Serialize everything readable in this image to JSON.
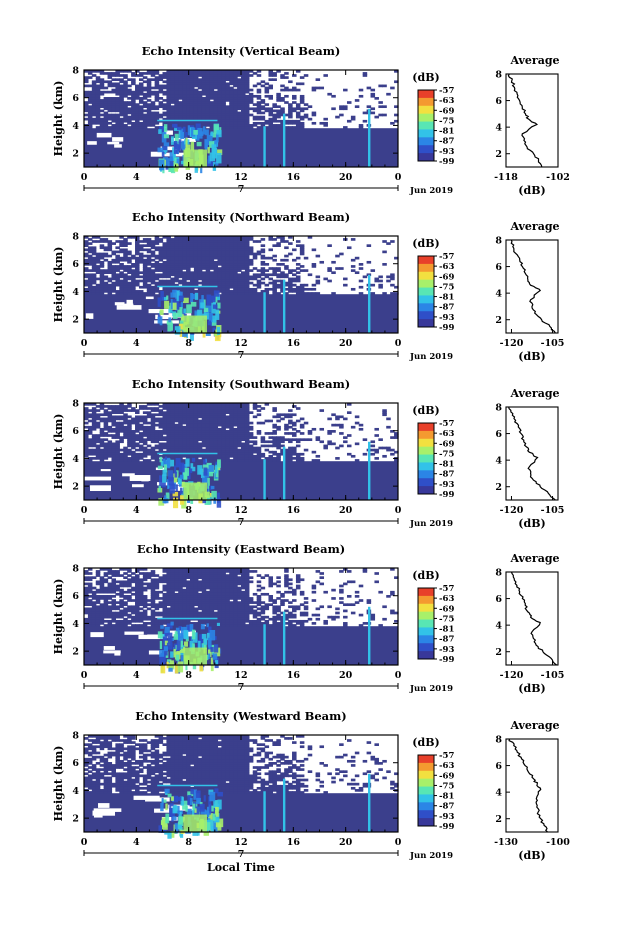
{
  "chart_data": [
    {
      "type": "heatmap",
      "title": "Echo Intensity (Vertical Beam)",
      "ylabel": "Height (km)",
      "x_ticks": [
        "0",
        "4",
        "8",
        "12",
        "16",
        "20",
        "0"
      ],
      "day_label": "7",
      "date_label": "Jun 2019",
      "ylim": [
        1,
        8
      ],
      "y_ticks": [
        "2",
        "4",
        "6",
        "8"
      ],
      "colorbar": {
        "unit": "(dB)",
        "ticks": [
          "-57",
          "-63",
          "-69",
          "-75",
          "-81",
          "-87",
          "-93",
          "-99"
        ]
      },
      "average": {
        "title": "Average",
        "xlabel": "(dB)",
        "x_ticks": [
          "-118",
          "-102"
        ],
        "xlim": [
          -118,
          -102
        ],
        "profile": [
          [
            -107.0,
            1.0
          ],
          [
            -108.0,
            1.5
          ],
          [
            -109.5,
            2.0
          ],
          [
            -111.5,
            2.5
          ],
          [
            -112.5,
            3.0
          ],
          [
            -113.0,
            3.5
          ],
          [
            -108.5,
            4.2
          ],
          [
            -111.0,
            4.6
          ],
          [
            -112.0,
            5.0
          ],
          [
            -113.0,
            5.5
          ],
          [
            -113.8,
            6.0
          ],
          [
            -114.6,
            6.5
          ],
          [
            -115.4,
            7.0
          ],
          [
            -116.2,
            7.5
          ],
          [
            -117.0,
            8.0
          ]
        ]
      }
    },
    {
      "type": "heatmap",
      "title": "Echo Intensity (Northward Beam)",
      "ylabel": "Height (km)",
      "x_ticks": [
        "0",
        "4",
        "8",
        "12",
        "16",
        "20",
        "0"
      ],
      "day_label": "7",
      "date_label": "Jun 2019",
      "ylim": [
        1,
        8
      ],
      "y_ticks": [
        "2",
        "4",
        "6",
        "8"
      ],
      "colorbar": {
        "unit": "(dB)",
        "ticks": [
          "-57",
          "-63",
          "-69",
          "-75",
          "-81",
          "-87",
          "-93",
          "-99"
        ]
      },
      "average": {
        "title": "Average",
        "xlabel": "(dB)",
        "x_ticks": [
          "-120",
          "-105"
        ],
        "xlim": [
          -122,
          -103
        ],
        "profile": [
          [
            -104.0,
            1.0
          ],
          [
            -106.0,
            1.5
          ],
          [
            -109.0,
            2.0
          ],
          [
            -111.5,
            2.5
          ],
          [
            -112.5,
            3.0
          ],
          [
            -113.0,
            3.5
          ],
          [
            -109.5,
            4.2
          ],
          [
            -113.0,
            4.6
          ],
          [
            -114.0,
            5.0
          ],
          [
            -115.0,
            5.5
          ],
          [
            -116.0,
            6.0
          ],
          [
            -117.0,
            6.5
          ],
          [
            -118.5,
            7.0
          ],
          [
            -119.5,
            7.5
          ],
          [
            -120.0,
            8.0
          ]
        ]
      }
    },
    {
      "type": "heatmap",
      "title": "Echo Intensity (Southward Beam)",
      "ylabel": "Height (km)",
      "x_ticks": [
        "0",
        "4",
        "8",
        "12",
        "16",
        "20",
        "0"
      ],
      "day_label": "7",
      "date_label": "Jun 2019",
      "ylim": [
        1,
        8
      ],
      "y_ticks": [
        "2",
        "4",
        "6",
        "8"
      ],
      "colorbar": {
        "unit": "(dB)",
        "ticks": [
          "-57",
          "-63",
          "-69",
          "-75",
          "-81",
          "-87",
          "-93",
          "-99"
        ]
      },
      "average": {
        "title": "Average",
        "xlabel": "(dB)",
        "x_ticks": [
          "-120",
          "-105"
        ],
        "xlim": [
          -122,
          -103
        ],
        "profile": [
          [
            -104.0,
            1.0
          ],
          [
            -106.5,
            1.5
          ],
          [
            -109.5,
            2.0
          ],
          [
            -112.0,
            2.5
          ],
          [
            -113.0,
            3.0
          ],
          [
            -113.5,
            3.5
          ],
          [
            -110.5,
            4.2
          ],
          [
            -113.5,
            4.6
          ],
          [
            -114.5,
            5.0
          ],
          [
            -115.5,
            5.5
          ],
          [
            -116.5,
            6.0
          ],
          [
            -117.5,
            6.5
          ],
          [
            -118.5,
            7.0
          ],
          [
            -119.5,
            7.5
          ],
          [
            -121.0,
            8.0
          ]
        ]
      }
    },
    {
      "type": "heatmap",
      "title": "Echo Intensity (Eastward Beam)",
      "ylabel": "Height (km)",
      "x_ticks": [
        "0",
        "4",
        "8",
        "12",
        "16",
        "20",
        "0"
      ],
      "day_label": "7",
      "date_label": "Jun 2019",
      "ylim": [
        1,
        8
      ],
      "y_ticks": [
        "2",
        "4",
        "6",
        "8"
      ],
      "colorbar": {
        "unit": "(dB)",
        "ticks": [
          "-57",
          "-63",
          "-69",
          "-75",
          "-81",
          "-87",
          "-93",
          "-99"
        ]
      },
      "average": {
        "title": "Average",
        "xlabel": "(dB)",
        "x_ticks": [
          "-120",
          "-105"
        ],
        "xlim": [
          -122,
          -103
        ],
        "profile": [
          [
            -103.5,
            1.0
          ],
          [
            -105.5,
            1.5
          ],
          [
            -108.5,
            2.0
          ],
          [
            -111.0,
            2.5
          ],
          [
            -112.0,
            3.0
          ],
          [
            -112.5,
            3.5
          ],
          [
            -109.5,
            4.2
          ],
          [
            -113.0,
            4.6
          ],
          [
            -114.0,
            5.0
          ],
          [
            -115.0,
            5.5
          ],
          [
            -116.0,
            6.0
          ],
          [
            -117.0,
            6.5
          ],
          [
            -118.0,
            7.0
          ],
          [
            -119.0,
            7.5
          ],
          [
            -120.0,
            8.0
          ]
        ]
      }
    },
    {
      "type": "heatmap",
      "title": "Echo Intensity (Westward Beam)",
      "ylabel": "Height (km)",
      "xlabel": "Local Time",
      "x_ticks": [
        "0",
        "4",
        "8",
        "12",
        "16",
        "20",
        "0"
      ],
      "day_label": "7",
      "date_label": "Jun 2019",
      "ylim": [
        1,
        8
      ],
      "y_ticks": [
        "2",
        "4",
        "6",
        "8"
      ],
      "colorbar": {
        "unit": "(dB)",
        "ticks": [
          "-57",
          "-63",
          "-69",
          "-75",
          "-81",
          "-87",
          "-93",
          "-99"
        ]
      },
      "average": {
        "title": "Average",
        "xlabel": "(dB)",
        "x_ticks": [
          "-130",
          "-100"
        ],
        "xlim": [
          -130,
          -100
        ],
        "profile": [
          [
            -106.0,
            1.0
          ],
          [
            -108.0,
            1.5
          ],
          [
            -110.0,
            2.0
          ],
          [
            -111.5,
            2.5
          ],
          [
            -112.0,
            3.0
          ],
          [
            -112.5,
            3.5
          ],
          [
            -110.0,
            4.2
          ],
          [
            -112.0,
            4.6
          ],
          [
            -114.0,
            5.0
          ],
          [
            -117.0,
            5.5
          ],
          [
            -119.0,
            6.0
          ],
          [
            -121.0,
            6.5
          ],
          [
            -123.5,
            7.0
          ],
          [
            -125.5,
            7.5
          ],
          [
            -128.0,
            8.0
          ]
        ]
      }
    }
  ],
  "colors": {
    "background_echo": "#3b3f8c",
    "colormap": [
      "#38389a",
      "#2f4fc8",
      "#2b85e6",
      "#32c2e8",
      "#58e6b4",
      "#a8f06a",
      "#f2e040",
      "#f49a30",
      "#e8402a"
    ]
  }
}
